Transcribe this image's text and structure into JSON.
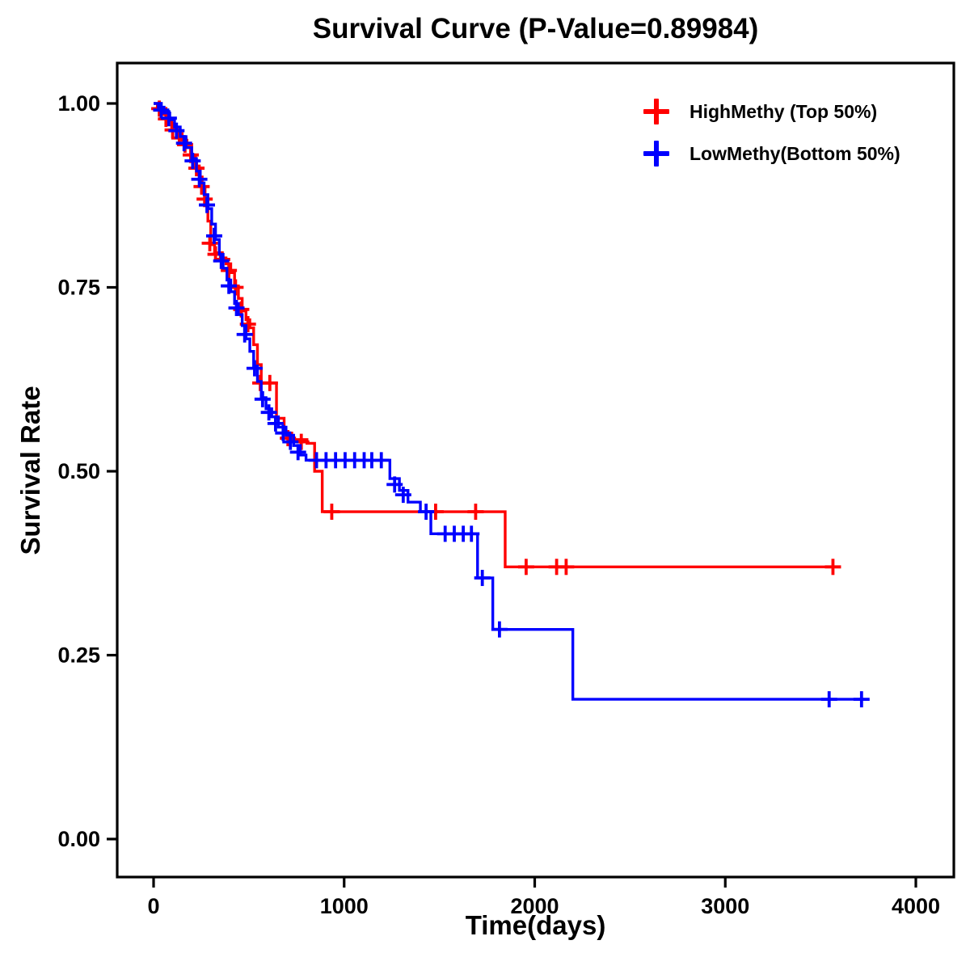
{
  "title": "Survival Curve (P-Value=0.89984)",
  "p_value": "0.89984",
  "axes": {
    "x_label": "Time(days)",
    "y_label": "Survival Rate"
  },
  "legend": {
    "items": [
      {
        "label": "HighMethy (Top 50%)",
        "color": "#ff0000"
      },
      {
        "label": "LowMethy(Bottom 50%)",
        "color": "#0000ff"
      }
    ]
  },
  "chart_data": {
    "type": "line",
    "subtype": "kaplan-meier-step",
    "title": "Survival Curve (P-Value=0.89984)",
    "xlabel": "Time(days)",
    "ylabel": "Survival Rate",
    "xlim": [
      0,
      4000
    ],
    "ylim": [
      0.0,
      1.0
    ],
    "x_ticks": [
      {
        "value": 0,
        "label": "0"
      },
      {
        "value": 1000,
        "label": "1000"
      },
      {
        "value": 2000,
        "label": "2000"
      },
      {
        "value": 3000,
        "label": "3000"
      },
      {
        "value": 4000,
        "label": "4000"
      }
    ],
    "y_ticks": [
      {
        "value": 0.0,
        "label": "0.00"
      },
      {
        "value": 0.25,
        "label": "0.25"
      },
      {
        "value": 0.5,
        "label": "0.50"
      },
      {
        "value": 0.75,
        "label": "0.75"
      },
      {
        "value": 1.0,
        "label": "1.00"
      }
    ],
    "grid": false,
    "legend_position": "top-right",
    "series": [
      {
        "name": "HighMethy (Top 50%)",
        "color": "#ff0000",
        "end_time": 3565,
        "points": [
          [
            0,
            1.0
          ],
          [
            20,
            0.993
          ],
          [
            45,
            0.985
          ],
          [
            70,
            0.977
          ],
          [
            95,
            0.968
          ],
          [
            120,
            0.959
          ],
          [
            150,
            0.95
          ],
          [
            175,
            0.94
          ],
          [
            200,
            0.928
          ],
          [
            220,
            0.915
          ],
          [
            240,
            0.9
          ],
          [
            255,
            0.885
          ],
          [
            270,
            0.868
          ],
          [
            285,
            0.84
          ],
          [
            300,
            0.808
          ],
          [
            320,
            0.797
          ],
          [
            350,
            0.79
          ],
          [
            380,
            0.782
          ],
          [
            405,
            0.77
          ],
          [
            425,
            0.752
          ],
          [
            445,
            0.735
          ],
          [
            465,
            0.718
          ],
          [
            485,
            0.706
          ],
          [
            505,
            0.695
          ],
          [
            525,
            0.672
          ],
          [
            545,
            0.645
          ],
          [
            565,
            0.62
          ],
          [
            645,
            0.572
          ],
          [
            685,
            0.552
          ],
          [
            725,
            0.543
          ],
          [
            805,
            0.538
          ],
          [
            845,
            0.5
          ],
          [
            885,
            0.445
          ],
          [
            1845,
            0.37
          ]
        ],
        "censors": [
          [
            30,
            0.993
          ],
          [
            65,
            0.979
          ],
          [
            100,
            0.964
          ],
          [
            135,
            0.953
          ],
          [
            165,
            0.944
          ],
          [
            195,
            0.93
          ],
          [
            225,
            0.912
          ],
          [
            252,
            0.887
          ],
          [
            268,
            0.87
          ],
          [
            295,
            0.81
          ],
          [
            325,
            0.795
          ],
          [
            360,
            0.788
          ],
          [
            395,
            0.773
          ],
          [
            430,
            0.75
          ],
          [
            460,
            0.72
          ],
          [
            495,
            0.7
          ],
          [
            560,
            0.62
          ],
          [
            610,
            0.62
          ],
          [
            705,
            0.545
          ],
          [
            775,
            0.54
          ],
          [
            935,
            0.445
          ],
          [
            1480,
            0.445
          ],
          [
            1690,
            0.445
          ],
          [
            1955,
            0.37
          ],
          [
            2115,
            0.37
          ],
          [
            2165,
            0.37
          ],
          [
            3565,
            0.37
          ]
        ]
      },
      {
        "name": "LowMethy(Bottom 50%)",
        "color": "#0000ff",
        "end_time": 3730,
        "points": [
          [
            0,
            1.0
          ],
          [
            25,
            0.995
          ],
          [
            55,
            0.987
          ],
          [
            85,
            0.978
          ],
          [
            110,
            0.968
          ],
          [
            140,
            0.955
          ],
          [
            170,
            0.94
          ],
          [
            200,
            0.925
          ],
          [
            225,
            0.908
          ],
          [
            245,
            0.892
          ],
          [
            265,
            0.876
          ],
          [
            285,
            0.857
          ],
          [
            305,
            0.836
          ],
          [
            325,
            0.815
          ],
          [
            345,
            0.795
          ],
          [
            365,
            0.776
          ],
          [
            385,
            0.76
          ],
          [
            405,
            0.744
          ],
          [
            425,
            0.728
          ],
          [
            445,
            0.713
          ],
          [
            465,
            0.698
          ],
          [
            485,
            0.68
          ],
          [
            505,
            0.663
          ],
          [
            525,
            0.643
          ],
          [
            545,
            0.622
          ],
          [
            565,
            0.6
          ],
          [
            590,
            0.585
          ],
          [
            620,
            0.574
          ],
          [
            655,
            0.56
          ],
          [
            695,
            0.549
          ],
          [
            735,
            0.535
          ],
          [
            770,
            0.522
          ],
          [
            800,
            0.515
          ],
          [
            1240,
            0.49
          ],
          [
            1290,
            0.474
          ],
          [
            1335,
            0.458
          ],
          [
            1400,
            0.445
          ],
          [
            1455,
            0.415
          ],
          [
            1700,
            0.355
          ],
          [
            1780,
            0.285
          ],
          [
            2200,
            0.19
          ]
        ],
        "censors": [
          [
            40,
            0.991
          ],
          [
            80,
            0.98
          ],
          [
            120,
            0.963
          ],
          [
            160,
            0.946
          ],
          [
            205,
            0.922
          ],
          [
            240,
            0.897
          ],
          [
            280,
            0.862
          ],
          [
            318,
            0.82
          ],
          [
            355,
            0.786
          ],
          [
            395,
            0.752
          ],
          [
            435,
            0.722
          ],
          [
            478,
            0.686
          ],
          [
            530,
            0.64
          ],
          [
            572,
            0.598
          ],
          [
            605,
            0.58
          ],
          [
            640,
            0.565
          ],
          [
            680,
            0.552
          ],
          [
            718,
            0.54
          ],
          [
            758,
            0.526
          ],
          [
            855,
            0.515
          ],
          [
            905,
            0.515
          ],
          [
            955,
            0.515
          ],
          [
            1005,
            0.515
          ],
          [
            1055,
            0.515
          ],
          [
            1105,
            0.515
          ],
          [
            1145,
            0.515
          ],
          [
            1195,
            0.515
          ],
          [
            1265,
            0.482
          ],
          [
            1310,
            0.468
          ],
          [
            1430,
            0.445
          ],
          [
            1530,
            0.415
          ],
          [
            1578,
            0.415
          ],
          [
            1625,
            0.415
          ],
          [
            1668,
            0.415
          ],
          [
            1725,
            0.355
          ],
          [
            1815,
            0.285
          ],
          [
            3545,
            0.19
          ],
          [
            3715,
            0.19
          ]
        ]
      }
    ]
  }
}
